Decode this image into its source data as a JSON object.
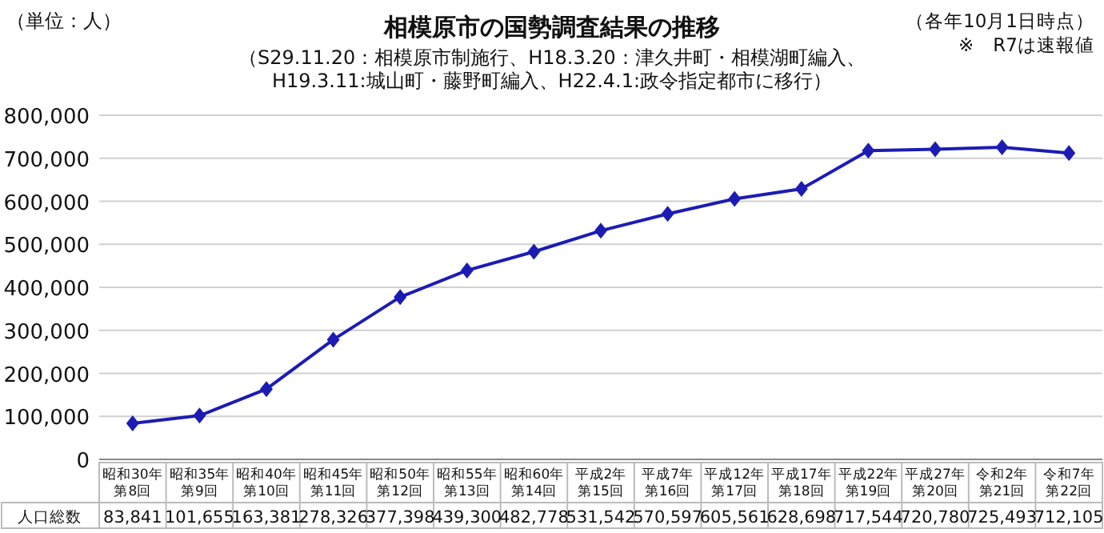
{
  "chart_data": {
    "type": "line",
    "title": "相模原市の国勢調査結果の推移",
    "subtitle": "（S29.11.20：相模原市制施行、H18.3.20：津久井町・相模湖町編入、\nH19.3.11:城山町・藤野町編入、H22.4.1:政令指定都市に移行）",
    "categories": [
      "昭和30年第8回",
      "昭和35年第9回",
      "昭和40年第10回",
      "昭和45年第11回",
      "昭和50年第12回",
      "昭和55年第13回",
      "昭和60年第14回",
      "平成2年第15回",
      "平成7年第16回",
      "平成12年第17回",
      "平成17年第18回",
      "平成22年第19回",
      "平成27年第20回",
      "令和2年第21回",
      "令和7年第22回"
    ],
    "series": [
      {
        "color": "#1c1cb4",
        "values": [
          83841,
          101655,
          163381,
          278326,
          377398,
          439300,
          482778,
          531542,
          570597,
          605561,
          628698,
          717544,
          720780,
          725493,
          712105
        ],
        "value_labels": [
          "83,841",
          "101,655",
          "163,381",
          "278,326",
          "377,398",
          "439,300",
          "482,778",
          "531,542",
          "570,597",
          "605,561",
          "628,698",
          "717,544",
          "720,780",
          "725,493",
          "712,105"
        ]
      }
    ],
    "marker": "diamond",
    "grid": "y",
    "ylim": [
      0,
      800000
    ],
    "yticks": [
      {
        "value": 0,
        "label": "0"
      },
      {
        "value": 100000,
        "label": "100,000"
      },
      {
        "value": 200000,
        "label": "200,000"
      },
      {
        "value": 300000,
        "label": "300,000"
      },
      {
        "value": 400000,
        "label": "400,000"
      },
      {
        "value": 500000,
        "label": "500,000"
      },
      {
        "value": 600000,
        "label": "600,000"
      },
      {
        "value": 700000,
        "label": "700,000"
      },
      {
        "value": 800000,
        "label": "800,000"
      }
    ],
    "annotations": [
      "（単位：人）",
      "（各年10月1日時点）",
      "※　R7は速報値",
      "人口総数"
    ]
  }
}
